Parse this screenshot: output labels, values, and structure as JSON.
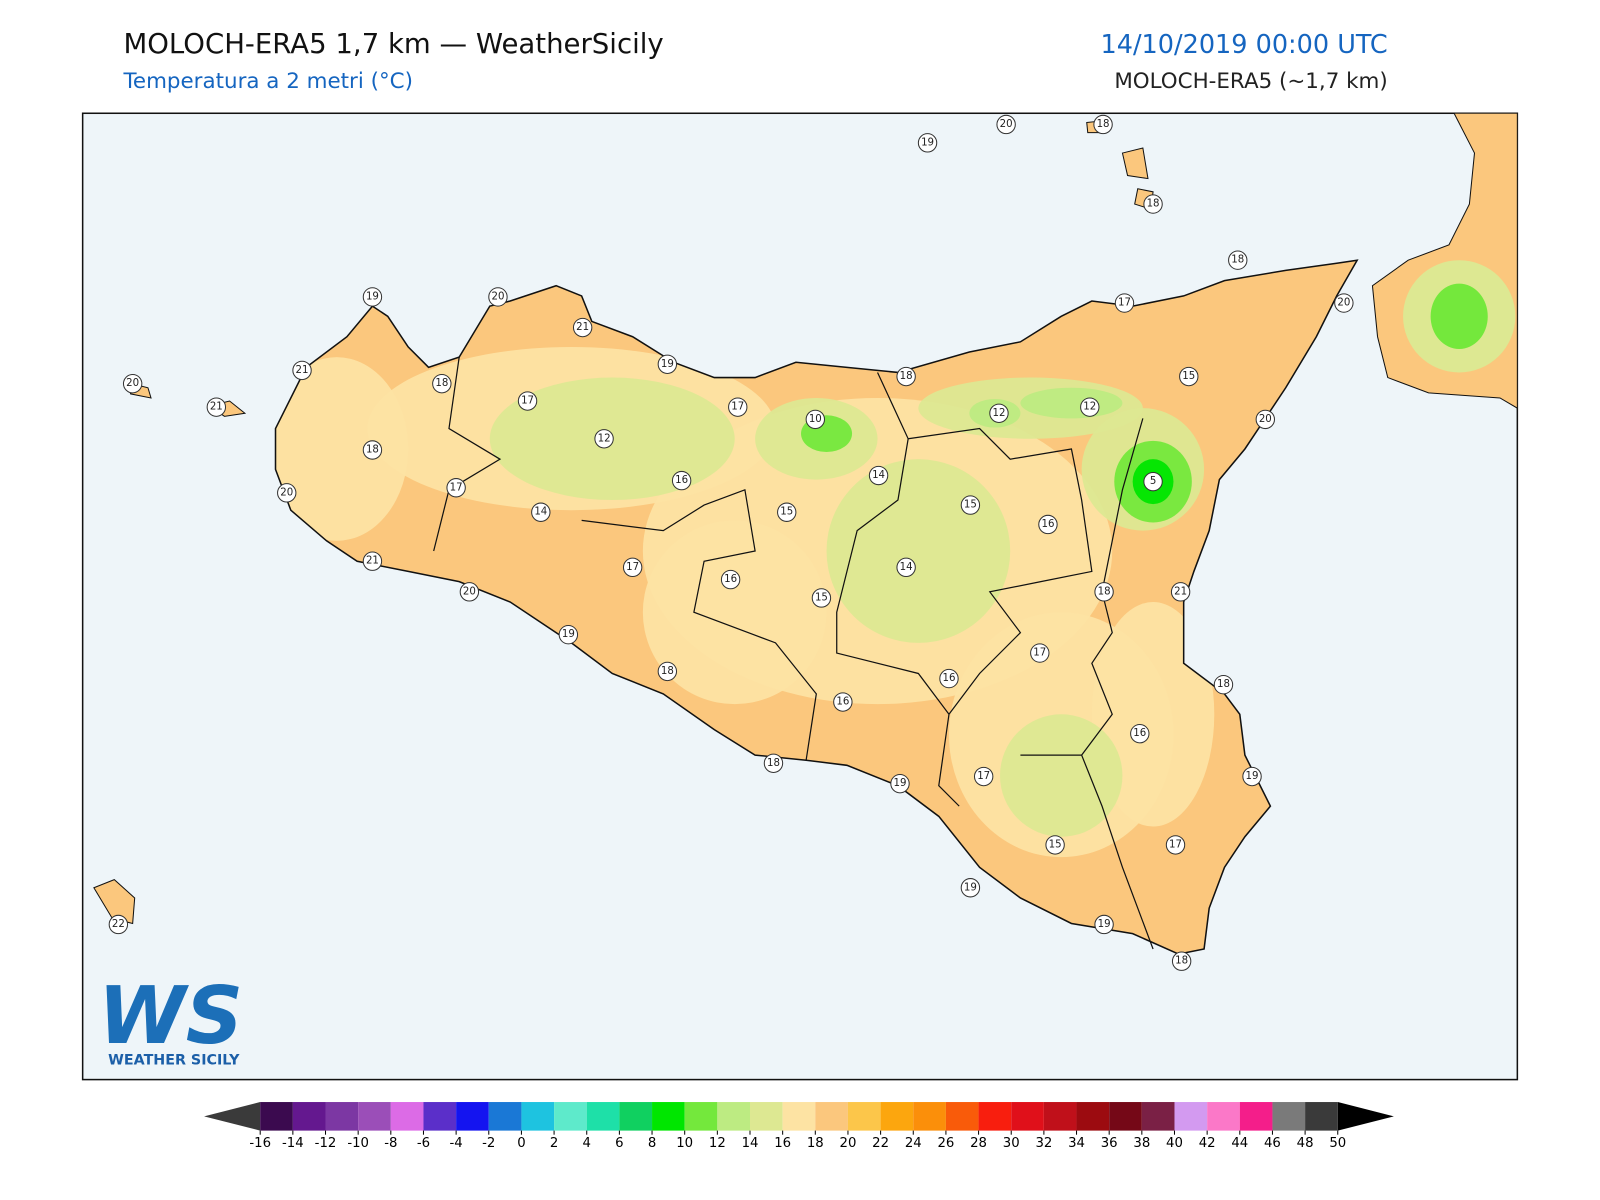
{
  "header": {
    "title": "MOLOCH-ERA5 1,7 km — WeatherSicily",
    "subtitle": "Temperatura a 2 metri (°C)",
    "datetime": "14/10/2019 00:00 UTC",
    "model": "MOLOCH-ERA5 (~1,7 km)"
  },
  "stations": [
    19,
    20,
    18,
    18,
    18,
    17,
    20,
    19,
    20,
    21,
    19,
    21,
    18,
    20,
    21,
    17,
    17,
    18,
    15,
    12,
    12,
    20,
    10,
    12,
    18,
    14,
    5,
    16,
    17,
    20,
    14,
    15,
    15,
    16,
    21,
    17,
    14,
    16,
    20,
    18,
    21,
    15,
    19,
    17,
    18,
    16,
    18,
    16,
    16,
    18,
    19,
    17,
    19,
    15,
    17,
    19,
    19,
    18,
    22
  ],
  "colorbar": {
    "ticks": [
      -16,
      -14,
      -12,
      -10,
      -8,
      -6,
      -4,
      -2,
      0,
      2,
      4,
      6,
      8,
      10,
      12,
      14,
      16,
      18,
      20,
      22,
      24,
      26,
      28,
      30,
      32,
      34,
      36,
      38,
      40,
      42,
      44,
      46,
      48,
      50
    ],
    "colors": [
      "#3b0a4f",
      "#64188f",
      "#7c37a3",
      "#9b4eb8",
      "#dc6be6",
      "#5b2fc9",
      "#1414f0",
      "#1a78d6",
      "#1ec3e0",
      "#5eeacb",
      "#1ee0a8",
      "#10d060",
      "#00e600",
      "#74e83c",
      "#bdeb82",
      "#dde892",
      "#fde3a3",
      "#fbc77d",
      "#fcc64a",
      "#fca60e",
      "#fb8f0a",
      "#f95b0a",
      "#f81e0e",
      "#e0101a",
      "#c0101a",
      "#9c0b10",
      "#750817",
      "#7a2045",
      "#d39af0",
      "#fb78c8",
      "#f41e8a",
      "#7a7a7a",
      "#3a3a3a"
    ],
    "under_color": "#3a3a3a",
    "over_color": "#000000"
  },
  "logo": {
    "mark": "WS",
    "text": "WEATHER SICILY"
  }
}
